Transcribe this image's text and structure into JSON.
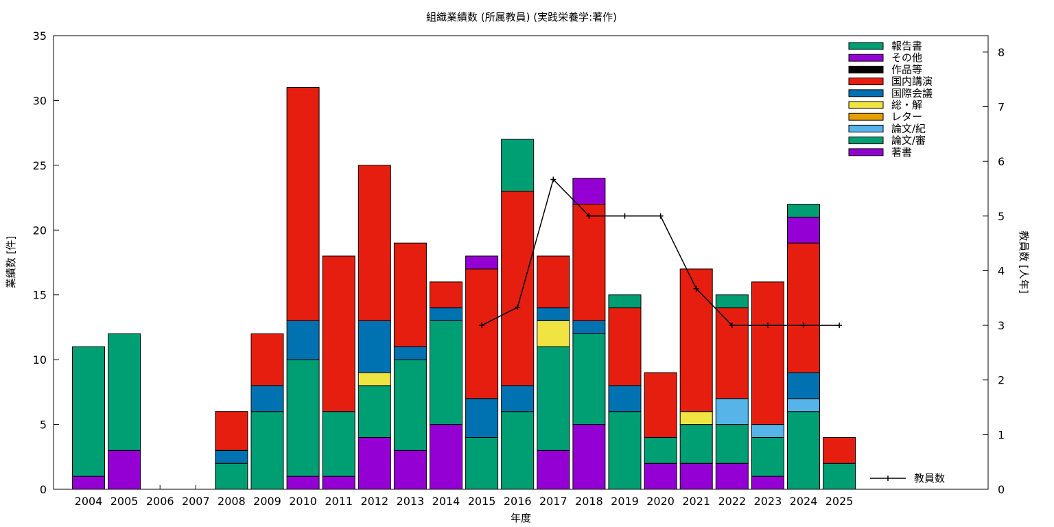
{
  "chart_data": {
    "type": "bar",
    "stacked": true,
    "title": "組織業績数 (所属教員) (実践栄養学:著作)",
    "xlabel": "年度",
    "ylabel": "業績数 [件]",
    "y2label": "教員数 [人年]",
    "categories": [
      "2004",
      "2005",
      "2006",
      "2007",
      "2008",
      "2009",
      "2010",
      "2011",
      "2012",
      "2013",
      "2014",
      "2015",
      "2016",
      "2017",
      "2018",
      "2019",
      "2020",
      "2021",
      "2022",
      "2023",
      "2024",
      "2025"
    ],
    "ylim": [
      0,
      35
    ],
    "y2lim": [
      0,
      8.3
    ],
    "yticks": [
      0,
      5,
      10,
      15,
      20,
      25,
      30,
      35
    ],
    "y2ticks": [
      0,
      1,
      2,
      3,
      4,
      5,
      6,
      7,
      8
    ],
    "grid": false,
    "legend_position": "top-right",
    "series": [
      {
        "name": "著書",
        "color": "#9400d3",
        "values": [
          1,
          3,
          0,
          0,
          0,
          0,
          1,
          1,
          4,
          3,
          5,
          0,
          0,
          3,
          5,
          0,
          2,
          2,
          2,
          1,
          0,
          0
        ]
      },
      {
        "name": "論文/審",
        "color": "#009e73",
        "values": [
          10,
          9,
          0,
          0,
          2,
          6,
          9,
          5,
          4,
          7,
          8,
          4,
          6,
          8,
          7,
          6,
          2,
          3,
          3,
          3,
          6,
          2
        ]
      },
      {
        "name": "論文/紀",
        "color": "#56b4e9",
        "values": [
          0,
          0,
          0,
          0,
          0,
          0,
          0,
          0,
          0,
          0,
          0,
          0,
          0,
          0,
          0,
          0,
          0,
          0,
          2,
          1,
          1,
          0
        ]
      },
      {
        "name": "レター",
        "color": "#e69f00",
        "values": [
          0,
          0,
          0,
          0,
          0,
          0,
          0,
          0,
          0,
          0,
          0,
          0,
          0,
          0,
          0,
          0,
          0,
          0,
          0,
          0,
          0,
          0
        ]
      },
      {
        "name": "総・解",
        "color": "#f0e442",
        "values": [
          0,
          0,
          0,
          0,
          0,
          0,
          0,
          0,
          1,
          0,
          0,
          0,
          0,
          2,
          0,
          0,
          0,
          1,
          0,
          0,
          0,
          0
        ]
      },
      {
        "name": "国際会議",
        "color": "#0072b2",
        "values": [
          0,
          0,
          0,
          0,
          1,
          2,
          3,
          0,
          4,
          1,
          1,
          3,
          2,
          1,
          1,
          2,
          0,
          0,
          0,
          0,
          2,
          0
        ]
      },
      {
        "name": "国内講演",
        "color": "#e51e10",
        "values": [
          0,
          0,
          0,
          0,
          3,
          4,
          18,
          12,
          12,
          8,
          2,
          10,
          15,
          4,
          9,
          6,
          5,
          11,
          7,
          11,
          10,
          2
        ]
      },
      {
        "name": "作品等",
        "color": "#000000",
        "values": [
          0,
          0,
          0,
          0,
          0,
          0,
          0,
          0,
          0,
          0,
          0,
          0,
          0,
          0,
          0,
          0,
          0,
          0,
          0,
          0,
          0,
          0
        ]
      },
      {
        "name": "その他",
        "color": "#9400d3",
        "values": [
          0,
          0,
          0,
          0,
          0,
          0,
          0,
          0,
          0,
          0,
          0,
          1,
          0,
          0,
          2,
          0,
          0,
          0,
          0,
          0,
          2,
          0
        ]
      },
      {
        "name": "報告書",
        "color": "#009e73",
        "values": [
          0,
          0,
          0,
          0,
          0,
          0,
          0,
          0,
          0,
          0,
          0,
          0,
          4,
          0,
          0,
          1,
          0,
          0,
          1,
          0,
          1,
          0
        ]
      }
    ],
    "line_series": {
      "name": "教員数",
      "axis": "y2",
      "color": "#000000",
      "points": [
        {
          "x": "2015",
          "y": 3.0
        },
        {
          "x": "2016",
          "y": 3.33
        },
        {
          "x": "2017",
          "y": 5.67
        },
        {
          "x": "2018",
          "y": 5.0
        },
        {
          "x": "2019",
          "y": 5.0
        },
        {
          "x": "2020",
          "y": 5.0
        },
        {
          "x": "2021",
          "y": 3.67
        },
        {
          "x": "2022",
          "y": 3.0
        },
        {
          "x": "2023",
          "y": 3.0
        },
        {
          "x": "2024",
          "y": 3.0
        },
        {
          "x": "2025",
          "y": 3.0
        }
      ]
    }
  }
}
